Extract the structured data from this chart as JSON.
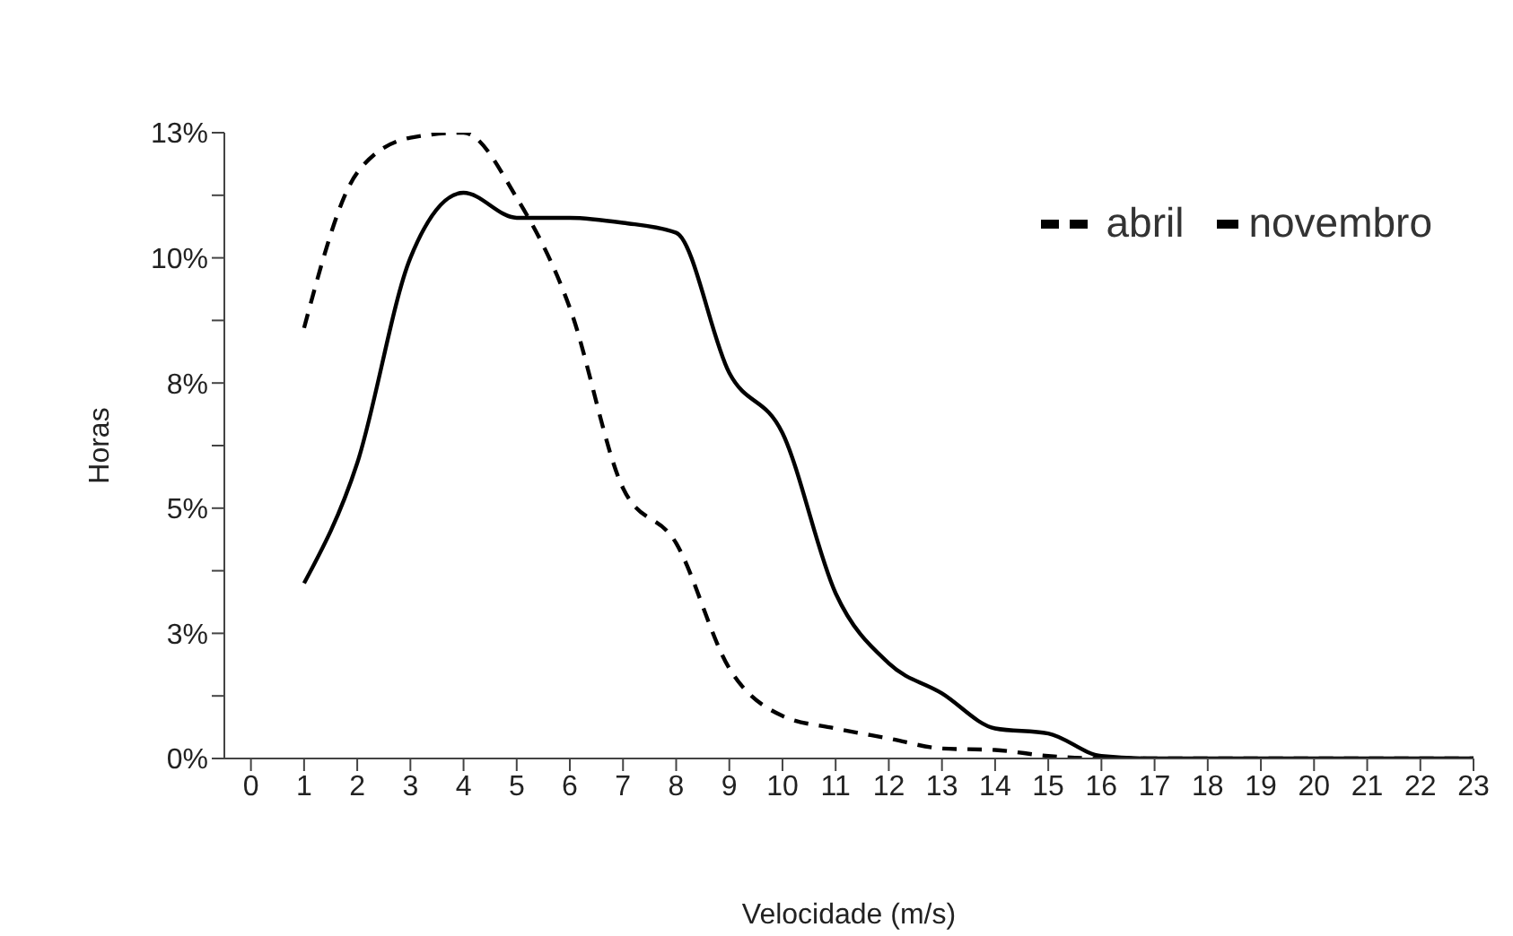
{
  "chart_data": {
    "type": "line",
    "xlabel": "Velocidade (m/s)",
    "ylabel": "Horas",
    "x": [
      1,
      2,
      3,
      4,
      5,
      6,
      7,
      8,
      9,
      10,
      11,
      12,
      13,
      14,
      15,
      16,
      17,
      18,
      19,
      20,
      21,
      22,
      23
    ],
    "series": [
      {
        "name": "abril",
        "color": "#000000",
        "line_style": "dashed",
        "values": [
          8.6,
          11.7,
          12.4,
          12.5,
          11.2,
          9.0,
          5.4,
          4.3,
          1.8,
          0.85,
          0.6,
          0.4,
          0.2,
          0.17,
          0.05,
          0,
          0,
          0,
          0,
          0,
          0,
          0,
          0
        ]
      },
      {
        "name": "novembro",
        "color": "#000000",
        "line_style": "solid",
        "values": [
          3.5,
          5.9,
          10.0,
          11.3,
          10.8,
          10.8,
          10.7,
          10.5,
          7.7,
          6.5,
          3.3,
          1.9,
          1.3,
          0.6,
          0.5,
          0.05,
          0,
          0,
          0,
          0,
          0,
          0,
          0
        ]
      }
    ],
    "xlim": [
      -0.5,
      23
    ],
    "xticks": [
      0,
      1,
      2,
      3,
      4,
      5,
      6,
      7,
      8,
      9,
      10,
      11,
      12,
      13,
      14,
      15,
      16,
      17,
      18,
      19,
      20,
      21,
      22,
      23
    ],
    "ylim": [
      0,
      12.5
    ],
    "yticks": [
      {
        "value": 0,
        "label": "0%"
      },
      {
        "value": 1.25,
        "label": null
      },
      {
        "value": 2.5,
        "label": "3%"
      },
      {
        "value": 3.75,
        "label": null
      },
      {
        "value": 5,
        "label": "5%"
      },
      {
        "value": 6.25,
        "label": null
      },
      {
        "value": 7.5,
        "label": "8%"
      },
      {
        "value": 8.75,
        "label": null
      },
      {
        "value": 10,
        "label": "10%"
      },
      {
        "value": 11.25,
        "label": null
      },
      {
        "value": 12.5,
        "label": "13%"
      }
    ],
    "grid": false,
    "legend": "top right",
    "marker": "none"
  }
}
